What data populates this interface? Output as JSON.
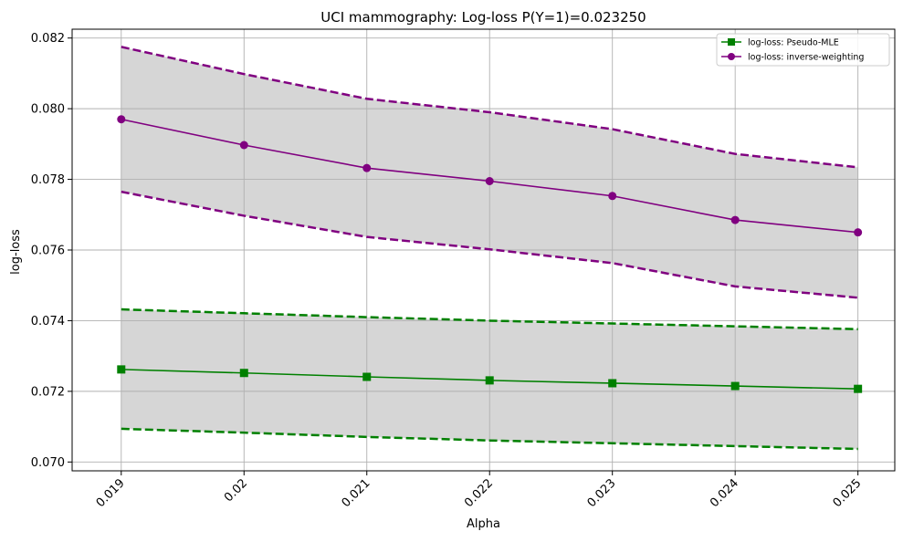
{
  "colors": {
    "pseudo_mle": "#008000",
    "inverse_weighting": "#800080",
    "band_fill": "#d6d6d6",
    "grid": "#b0b0b0",
    "axes": "#000000"
  },
  "chart_data": {
    "type": "line",
    "title": "UCI mammography: Log-loss P(Y=1)=0.023250",
    "xlabel": "Alpha",
    "ylabel": "log-loss",
    "x": [
      0.019,
      0.02,
      0.021,
      0.022,
      0.023,
      0.024,
      0.025
    ],
    "x_tick_labels": [
      "0.019",
      "0.02",
      "0.021",
      "0.022",
      "0.023",
      "0.024",
      "0.025"
    ],
    "y_ticks": [
      0.07,
      0.072,
      0.074,
      0.076,
      0.078,
      0.08,
      0.082
    ],
    "y_tick_labels": [
      "0.070",
      "0.072",
      "0.074",
      "0.076",
      "0.078",
      "0.080",
      "0.082"
    ],
    "xlim": [
      0.0186,
      0.0253
    ],
    "ylim": [
      0.06975,
      0.08225
    ],
    "grid": true,
    "legend_position": "top-right",
    "series": [
      {
        "name": "log-loss: Pseudo-MLE",
        "color": "#008000",
        "marker": "square",
        "values": [
          0.07262,
          0.07252,
          0.07241,
          0.07231,
          0.07223,
          0.07215,
          0.07207
        ],
        "upper": [
          0.07432,
          0.07421,
          0.0741,
          0.074,
          0.07392,
          0.07384,
          0.07376
        ],
        "lower": [
          0.07094,
          0.07083,
          0.07071,
          0.07061,
          0.07053,
          0.07045,
          0.07037
        ]
      },
      {
        "name": "log-loss: inverse-weighting",
        "color": "#800080",
        "marker": "circle",
        "values": [
          0.0797,
          0.07897,
          0.07832,
          0.07795,
          0.07753,
          0.07685,
          0.0765
        ],
        "upper": [
          0.08175,
          0.08098,
          0.08028,
          0.0799,
          0.07942,
          0.07872,
          0.07834
        ],
        "lower": [
          0.07765,
          0.07697,
          0.07637,
          0.07602,
          0.07563,
          0.07497,
          0.07465
        ]
      }
    ]
  }
}
